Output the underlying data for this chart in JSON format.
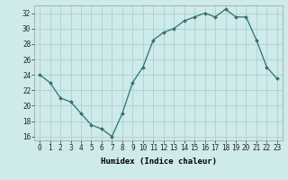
{
  "x": [
    0,
    1,
    2,
    3,
    4,
    5,
    6,
    7,
    8,
    9,
    10,
    11,
    12,
    13,
    14,
    15,
    16,
    17,
    18,
    19,
    20,
    21,
    22,
    23
  ],
  "y": [
    24,
    23,
    21,
    20.5,
    19,
    17.5,
    17,
    16,
    19,
    23,
    25,
    28.5,
    29.5,
    30,
    31,
    31.5,
    32,
    31.5,
    32.5,
    31.5,
    31.5,
    28.5,
    25,
    23.5
  ],
  "line_color": "#2e7070",
  "marker_color": "#2e7070",
  "bg_color": "#ceeaea",
  "grid_color": "#aed0d0",
  "xlabel": "Humidex (Indice chaleur)",
  "ylim": [
    15.5,
    33
  ],
  "xlim": [
    -0.5,
    23.5
  ],
  "yticks": [
    16,
    18,
    20,
    22,
    24,
    26,
    28,
    30,
    32
  ],
  "xticks": [
    0,
    1,
    2,
    3,
    4,
    5,
    6,
    7,
    8,
    9,
    10,
    11,
    12,
    13,
    14,
    15,
    16,
    17,
    18,
    19,
    20,
    21,
    22,
    23
  ],
  "xtick_labels": [
    "0",
    "1",
    "2",
    "3",
    "4",
    "5",
    "6",
    "7",
    "8",
    "9",
    "10",
    "11",
    "12",
    "13",
    "14",
    "15",
    "16",
    "17",
    "18",
    "19",
    "20",
    "21",
    "22",
    "23"
  ],
  "xlabel_fontsize": 6.5,
  "tick_fontsize": 5.5
}
